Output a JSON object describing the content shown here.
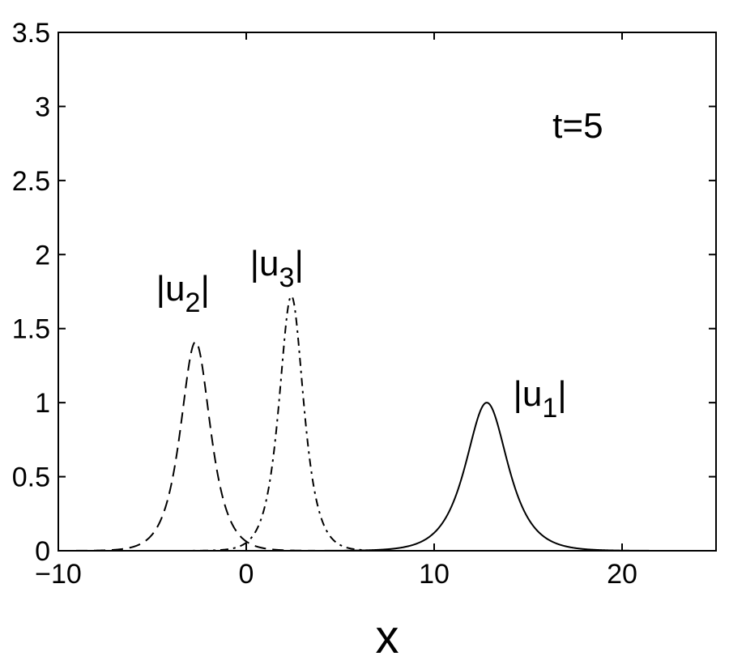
{
  "chart_data": {
    "type": "line",
    "title": "",
    "xlabel": "x",
    "ylabel": "",
    "xlim": [
      -10,
      25
    ],
    "ylim": [
      0,
      3.5
    ],
    "xticks": [
      -10,
      0,
      10,
      20
    ],
    "xtick_labels": [
      "−10",
      "0",
      "10",
      "20"
    ],
    "yticks": [
      0,
      0.5,
      1,
      1.5,
      2,
      2.5,
      3,
      3.5
    ],
    "ytick_labels": [
      "0",
      "0.5",
      "1",
      "1.5",
      "2",
      "2.5",
      "3",
      "3.5"
    ],
    "grid": false,
    "legend": "none",
    "series": [
      {
        "id": "u1",
        "style": "solid",
        "amplitude": 1.0,
        "center": 12.8,
        "width": 1.0
      },
      {
        "id": "u2",
        "style": "dashed",
        "amplitude": 1.41,
        "center": -2.7,
        "width": 0.71
      },
      {
        "id": "u3",
        "style": "dashdot",
        "amplitude": 1.72,
        "center": 2.4,
        "width": 0.58
      }
    ],
    "annotations": [
      {
        "id": "u1",
        "base": "|u",
        "sub": "1",
        "close": "|",
        "x": 14.2,
        "y": 0.98
      },
      {
        "id": "u2",
        "base": "|u",
        "sub": "2",
        "close": "|",
        "x": -4.8,
        "y": 1.69
      },
      {
        "id": "u3",
        "base": "|u",
        "sub": "3",
        "close": "|",
        "x": 0.2,
        "y": 1.86
      },
      {
        "id": "time",
        "text": "t=5",
        "x": 16.3,
        "y": 2.79
      }
    ]
  }
}
